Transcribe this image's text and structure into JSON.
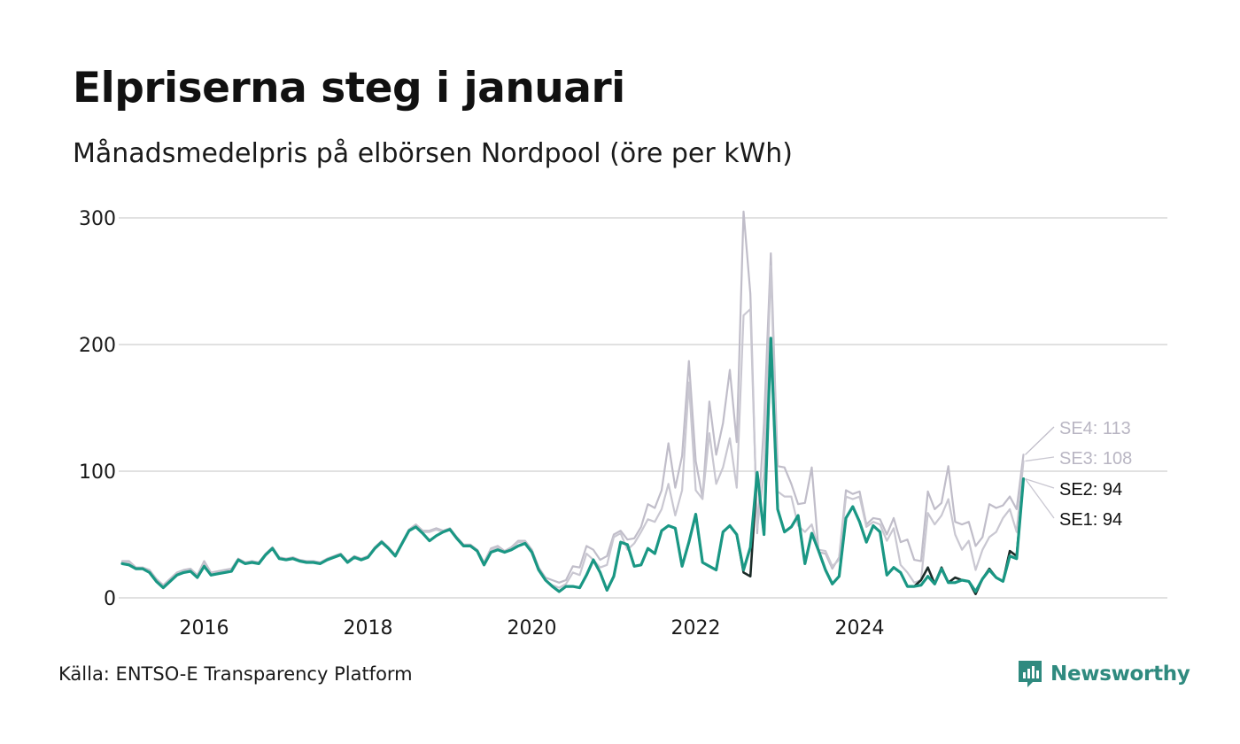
{
  "header": {
    "title": "Elpriserna steg i januari",
    "subtitle": "Månadsmedelpris på elbörsen Nordpool (öre per kWh)"
  },
  "footer": {
    "source": "Källa: ENTSO-E Transparency Platform",
    "brand": "Newsworthy",
    "brand_icon": "newsworthy-logo-icon"
  },
  "colors": {
    "SE1": "#1a9784",
    "SE2": "#1c2b28",
    "SE3": "#c9c7d1",
    "SE4": "#c0bdc9",
    "grid": "#e1e1e1",
    "brand": "#2f8a7f"
  },
  "chart_data": {
    "type": "line",
    "title": "Elpriserna steg i januari",
    "subtitle": "Månadsmedelpris på elbörsen Nordpool (öre per kWh)",
    "xlabel": "",
    "ylabel": "",
    "ylim": [
      0,
      300
    ],
    "yticks": [
      0,
      100,
      200,
      300
    ],
    "xticks": [
      {
        "value": 2016,
        "label": "2016"
      },
      {
        "value": 2018,
        "label": "2018"
      },
      {
        "value": 2020,
        "label": "2020"
      },
      {
        "value": 2022,
        "label": "2022"
      },
      {
        "value": 2024,
        "label": "2024"
      }
    ],
    "x_start": "2015-01",
    "x_end": "2026-01",
    "grid": true,
    "legend": "end-of-line labels (right)",
    "series": [
      {
        "name": "SE4",
        "label": "SE4: 113",
        "last_value": 113,
        "values": [
          29,
          29,
          24,
          24,
          22,
          15,
          10,
          15,
          20,
          22,
          23,
          18,
          29,
          20,
          21,
          22,
          23,
          31,
          28,
          29,
          28,
          35,
          40,
          32,
          31,
          32,
          30,
          29,
          29,
          28,
          31,
          33,
          35,
          29,
          33,
          31,
          33,
          40,
          45,
          40,
          34,
          44,
          54,
          58,
          53,
          53,
          55,
          53,
          55,
          48,
          42,
          42,
          38,
          28,
          39,
          41,
          37,
          40,
          45,
          45,
          38,
          24,
          16,
          14,
          12,
          14,
          25,
          24,
          41,
          38,
          30,
          33,
          50,
          53,
          46,
          47,
          56,
          74,
          71,
          85,
          122,
          87,
          112,
          187,
          108,
          79,
          155,
          113,
          138,
          180,
          123,
          305,
          240,
          51,
          138,
          272,
          104,
          103,
          90,
          74,
          75,
          103,
          36,
          35,
          23,
          32,
          85,
          82,
          84,
          58,
          63,
          62,
          50,
          63,
          44,
          46,
          30,
          29,
          84,
          70,
          75,
          104,
          60,
          58,
          60,
          41,
          48,
          74,
          71,
          73,
          80,
          70,
          113
        ]
      },
      {
        "name": "SE3",
        "label": "SE3: 108",
        "last_value": 108,
        "values": [
          28,
          28,
          23,
          24,
          21,
          14,
          9,
          14,
          19,
          21,
          22,
          17,
          27,
          19,
          20,
          21,
          22,
          30,
          27,
          28,
          27,
          34,
          39,
          31,
          30,
          31,
          29,
          28,
          28,
          27,
          30,
          32,
          34,
          28,
          32,
          30,
          32,
          39,
          44,
          39,
          33,
          43,
          53,
          57,
          52,
          52,
          54,
          52,
          54,
          47,
          41,
          41,
          37,
          27,
          38,
          40,
          36,
          39,
          44,
          44,
          36,
          22,
          14,
          10,
          8,
          11,
          20,
          18,
          35,
          30,
          24,
          26,
          48,
          51,
          38,
          43,
          52,
          62,
          60,
          70,
          90,
          65,
          85,
          170,
          85,
          78,
          130,
          90,
          103,
          126,
          87,
          223,
          228,
          55,
          98,
          262,
          84,
          80,
          80,
          57,
          52,
          58,
          38,
          37,
          25,
          30,
          80,
          78,
          80,
          56,
          60,
          58,
          45,
          55,
          26,
          20,
          12,
          14,
          67,
          58,
          65,
          78,
          50,
          38,
          45,
          22,
          38,
          48,
          52,
          63,
          70,
          52,
          108
        ]
      },
      {
        "name": "SE2",
        "label": "SE2: 94",
        "last_value": 94,
        "values": [
          27,
          26,
          23,
          23,
          20,
          13,
          8,
          13,
          18,
          20,
          21,
          16,
          25,
          18,
          19,
          20,
          21,
          30,
          27,
          28,
          27,
          34,
          39,
          31,
          30,
          31,
          29,
          28,
          28,
          27,
          30,
          32,
          34,
          28,
          32,
          30,
          32,
          39,
          44,
          39,
          33,
          43,
          53,
          56,
          51,
          45,
          49,
          52,
          54,
          47,
          41,
          41,
          37,
          26,
          36,
          38,
          36,
          38,
          41,
          43,
          36,
          22,
          14,
          9,
          5,
          9,
          9,
          8,
          18,
          30,
          20,
          6,
          17,
          44,
          42,
          25,
          26,
          39,
          35,
          53,
          57,
          55,
          25,
          44,
          66,
          28,
          25,
          22,
          52,
          57,
          50,
          20,
          17,
          99,
          50,
          205,
          70,
          52,
          56,
          65,
          27,
          51,
          37,
          22,
          11,
          17,
          63,
          72,
          60,
          44,
          57,
          52,
          18,
          24,
          20,
          9,
          9,
          14,
          24,
          11,
          24,
          12,
          16,
          14,
          13,
          3,
          15,
          23,
          16,
          13,
          37,
          33,
          94
        ]
      },
      {
        "name": "SE1",
        "label": "SE1: 94",
        "last_value": 94,
        "values": [
          27,
          26,
          23,
          23,
          20,
          13,
          8,
          13,
          18,
          20,
          21,
          16,
          25,
          18,
          19,
          20,
          21,
          30,
          27,
          28,
          27,
          34,
          39,
          31,
          30,
          31,
          29,
          28,
          28,
          27,
          30,
          32,
          34,
          28,
          32,
          30,
          32,
          39,
          44,
          39,
          33,
          43,
          53,
          56,
          51,
          45,
          49,
          52,
          54,
          47,
          41,
          41,
          37,
          26,
          36,
          38,
          36,
          38,
          41,
          43,
          36,
          22,
          14,
          9,
          5,
          9,
          9,
          8,
          18,
          30,
          20,
          6,
          17,
          44,
          42,
          25,
          26,
          39,
          35,
          53,
          57,
          55,
          25,
          44,
          66,
          28,
          25,
          22,
          52,
          57,
          50,
          22,
          40,
          99,
          50,
          205,
          70,
          52,
          56,
          65,
          27,
          51,
          37,
          22,
          11,
          17,
          63,
          72,
          60,
          44,
          57,
          52,
          18,
          24,
          20,
          9,
          9,
          10,
          17,
          11,
          23,
          12,
          12,
          14,
          13,
          5,
          15,
          22,
          16,
          13,
          33,
          31,
          94
        ]
      }
    ]
  }
}
